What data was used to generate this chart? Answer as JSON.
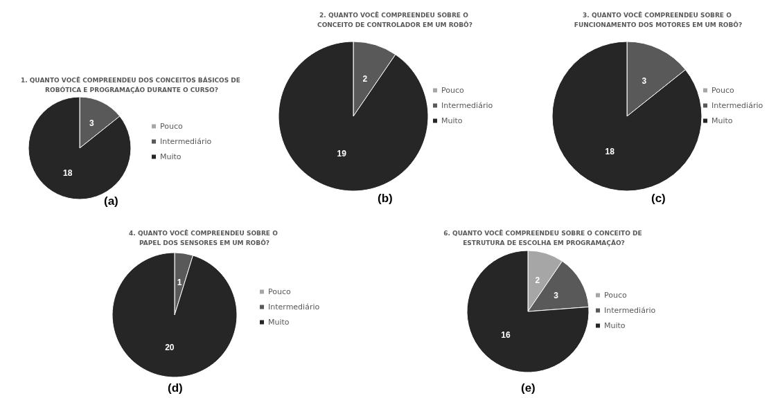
{
  "chart_data": [
    {
      "type": "pie",
      "title": "1. QUANTO VOCÊ COMPREENDEU DOS CONCEITOS BÁSICOS DE ROBÓTICA E PROGRAMAÇÃO DURANTE O CURSO?",
      "categories": [
        "Pouco",
        "Intermediário",
        "Muito"
      ],
      "values": [
        0,
        3,
        18
      ],
      "colors": [
        "#a6a6a6",
        "#595959",
        "#262626"
      ],
      "value_labels": [
        null,
        "3",
        "18"
      ],
      "legend": "right",
      "annotations": [
        "(a)"
      ]
    },
    {
      "type": "pie",
      "title": "2. QUANTO VOCÊ COMPREENDEU SOBRE O CONCEITO DE CONTROLADOR EM UM ROBÔ?",
      "categories": [
        "Pouco",
        "Intermediário",
        "Muito"
      ],
      "values": [
        0,
        2,
        19
      ],
      "colors": [
        "#a6a6a6",
        "#595959",
        "#262626"
      ],
      "value_labels": [
        null,
        "2",
        "19"
      ],
      "legend": "right",
      "annotations": [
        "(b)"
      ]
    },
    {
      "type": "pie",
      "title": "3. QUANTO VOCÊ COMPREENDEU SOBRE O FUNCIONAMENTO DOS MOTORES EM UM ROBÔ?",
      "categories": [
        "Pouco",
        "Intermediário",
        "Muito"
      ],
      "values": [
        0,
        3,
        18
      ],
      "colors": [
        "#a6a6a6",
        "#595959",
        "#262626"
      ],
      "value_labels": [
        null,
        "3",
        "18"
      ],
      "legend": "right",
      "annotations": [
        "(c)"
      ]
    },
    {
      "type": "pie",
      "title": "4. QUANTO VOCÊ COMPREENDEU SOBRE O PAPEL DOS SENSORES EM UM ROBÔ?",
      "categories": [
        "Pouco",
        "Intermediário",
        "Muito"
      ],
      "values": [
        0,
        1,
        20
      ],
      "colors": [
        "#a6a6a6",
        "#595959",
        "#262626"
      ],
      "value_labels": [
        null,
        "1",
        "20"
      ],
      "legend": "right",
      "annotations": [
        "(d)"
      ]
    },
    {
      "type": "pie",
      "title": "6. QUANTO VOCÊ COMPREENDEU SOBRE O CONCEITO DE ESTRUTURA DE ESCOLHA EM PROGRAMAÇÃO?",
      "categories": [
        "Pouco",
        "Intermediário",
        "Muito"
      ],
      "values": [
        2,
        3,
        16
      ],
      "colors": [
        "#a6a6a6",
        "#595959",
        "#262626"
      ],
      "value_labels": [
        "2",
        "3",
        "16"
      ],
      "legend": "right",
      "annotations": [
        "(e)"
      ]
    }
  ]
}
